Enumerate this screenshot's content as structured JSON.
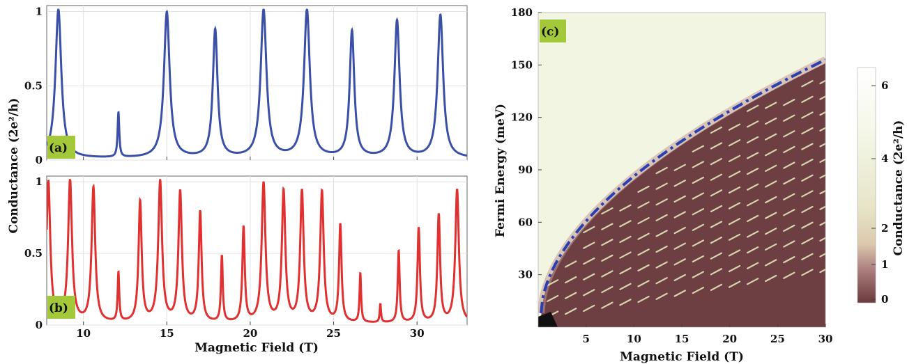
{
  "chart_data": [
    {
      "panel": "(a)",
      "type": "line",
      "xlim": [
        7.8,
        33
      ],
      "ylim": [
        0,
        1.04
      ],
      "xticks": [
        "10",
        "15",
        "20",
        "25",
        "30"
      ],
      "yticks": [
        "0",
        "0.5",
        "1"
      ],
      "color": "#3a4fa8",
      "peaks": [
        {
          "x": 8.5,
          "y": 1.0
        },
        {
          "x": 12.1,
          "y": 0.3
        },
        {
          "x": 15.0,
          "y": 0.98
        },
        {
          "x": 17.9,
          "y": 0.86
        },
        {
          "x": 20.8,
          "y": 0.99
        },
        {
          "x": 23.4,
          "y": 0.99
        },
        {
          "x": 26.1,
          "y": 0.85
        },
        {
          "x": 28.8,
          "y": 0.92
        },
        {
          "x": 31.4,
          "y": 0.96
        }
      ]
    },
    {
      "panel": "(b)",
      "type": "line",
      "xlim": [
        7.8,
        33
      ],
      "ylim": [
        0,
        1.04
      ],
      "xticks": [
        "10",
        "15",
        "20",
        "25",
        "30"
      ],
      "yticks": [
        "0",
        "0.5",
        "1"
      ],
      "color": "#e03030",
      "peaks": [
        {
          "x": 7.9,
          "y": 0.98
        },
        {
          "x": 9.2,
          "y": 0.99
        },
        {
          "x": 10.6,
          "y": 0.94
        },
        {
          "x": 12.1,
          "y": 0.34
        },
        {
          "x": 13.4,
          "y": 0.84
        },
        {
          "x": 14.6,
          "y": 0.98
        },
        {
          "x": 15.8,
          "y": 0.91
        },
        {
          "x": 17.0,
          "y": 0.77
        },
        {
          "x": 18.3,
          "y": 0.46
        },
        {
          "x": 19.6,
          "y": 0.66
        },
        {
          "x": 20.8,
          "y": 0.97
        },
        {
          "x": 22.0,
          "y": 0.91
        },
        {
          "x": 23.1,
          "y": 0.91
        },
        {
          "x": 24.3,
          "y": 0.91
        },
        {
          "x": 25.4,
          "y": 0.68
        },
        {
          "x": 26.6,
          "y": 0.34
        },
        {
          "x": 27.8,
          "y": 0.13
        },
        {
          "x": 28.9,
          "y": 0.5
        },
        {
          "x": 30.1,
          "y": 0.66
        },
        {
          "x": 31.3,
          "y": 0.75
        },
        {
          "x": 32.4,
          "y": 0.93
        }
      ]
    },
    {
      "panel": "(c)",
      "type": "heatmap",
      "xlim": [
        0,
        30
      ],
      "ylim": [
        0,
        180
      ],
      "xticks": [
        "5",
        "10",
        "15",
        "20",
        "25",
        "30"
      ],
      "yticks": [
        "30",
        "60",
        "90",
        "120",
        "150",
        "180"
      ],
      "boundary_curve": "dash-dot blue, rising from ~(0.3, 8) to ~(30, 153)",
      "colorbar": {
        "label": "Conductance (2e²/h)",
        "ticks": [
          "0",
          "1",
          "2",
          "4",
          "6"
        ],
        "colors": [
          "#6a3a3c",
          "#c9a5a0",
          "#e7e4c7",
          "#f3f6e6",
          "#ffffff"
        ]
      }
    }
  ],
  "labels": {
    "ylabel_left": "Conductance (2e²/h)",
    "xlabel_left": "Magnetic Field (T)",
    "ylabel_right": "Fermi Energy (meV)",
    "xlabel_right": "Magnetic Field (T)",
    "badge_a": "(a)",
    "badge_b": "(b)",
    "badge_c": "(c)"
  },
  "colors": {
    "badge": "#a3c93a",
    "curve_a": "#3a4fa8",
    "curve_b": "#e03030",
    "boundary": "#2a3fb0"
  }
}
